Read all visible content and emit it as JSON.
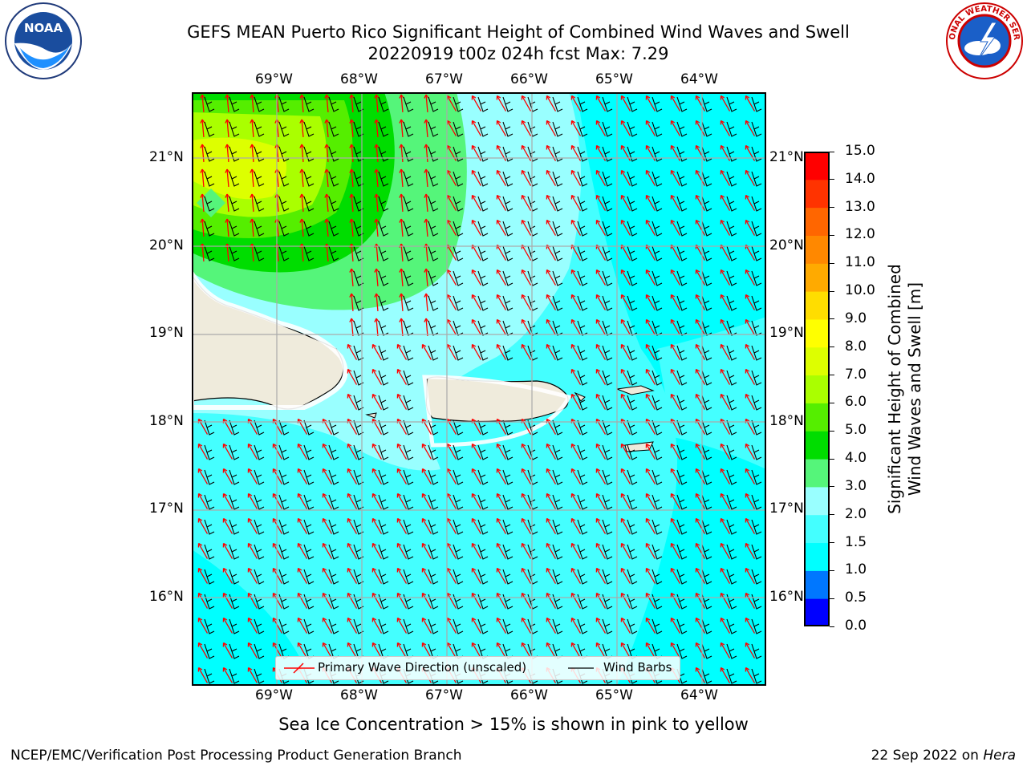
{
  "header": {
    "title_line1": "GEFS MEAN Puerto Rico Significant Height of Combined Wind Waves and Swell",
    "title_line2": "20220919 t00z 024h fcst   Max: 7.29"
  },
  "logos": {
    "noaa": {
      "text": "NOAA",
      "ring_text": "NATIONAL OCEANIC AND ATMOSPHERIC ADMINISTRATION · U.S. DEPARTMENT OF COMMERCE"
    },
    "nws": {
      "ring_text": "NATIONAL WEATHER SERVICE"
    }
  },
  "map": {
    "lon_labels": [
      "69°W",
      "68°W",
      "67°W",
      "66°W",
      "65°W",
      "64°W"
    ],
    "lat_labels": [
      "21°N",
      "20°N",
      "19°N",
      "18°N",
      "17°N",
      "16°N"
    ],
    "lon_range": [
      -70.0,
      -63.25
    ],
    "lat_range": [
      15.0,
      21.75
    ],
    "grid": true,
    "legend": {
      "wave_label": "Primary Wave Direction (unscaled)",
      "wave_color": "#ff0000",
      "barb_label": "Wind Barbs",
      "barb_color": "#000000",
      "placement": "bottom-center"
    },
    "land_color": "#efebdc",
    "max_value": 7.29
  },
  "colorbar": {
    "label_line1": "Significant Height of Combined",
    "label_line2": "Wind Waves and Swell [m]",
    "levels": [
      "0.0",
      "0.5",
      "1.0",
      "1.5",
      "2.0",
      "3.0",
      "4.0",
      "5.0",
      "6.0",
      "7.0",
      "8.0",
      "9.0",
      "10.0",
      "11.0",
      "12.0",
      "13.0",
      "14.0",
      "15.0"
    ],
    "colors": [
      "#0000ff",
      "#0077ff",
      "#00ffff",
      "#44ffff",
      "#99ffff",
      "#55f57a",
      "#00dd00",
      "#55ee00",
      "#aaff00",
      "#ddff00",
      "#ffff00",
      "#ffdd00",
      "#ffaa00",
      "#ff8800",
      "#ff6600",
      "#ff3300",
      "#ff0000"
    ]
  },
  "notes": {
    "sea_ice": "Sea Ice Concentration > 15% is shown in pink to yellow"
  },
  "footer": {
    "left": "NCEP/EMC/Verification Post Processing Product Generation Branch",
    "date": "22 Sep 2022 on ",
    "machine": "Hera"
  }
}
